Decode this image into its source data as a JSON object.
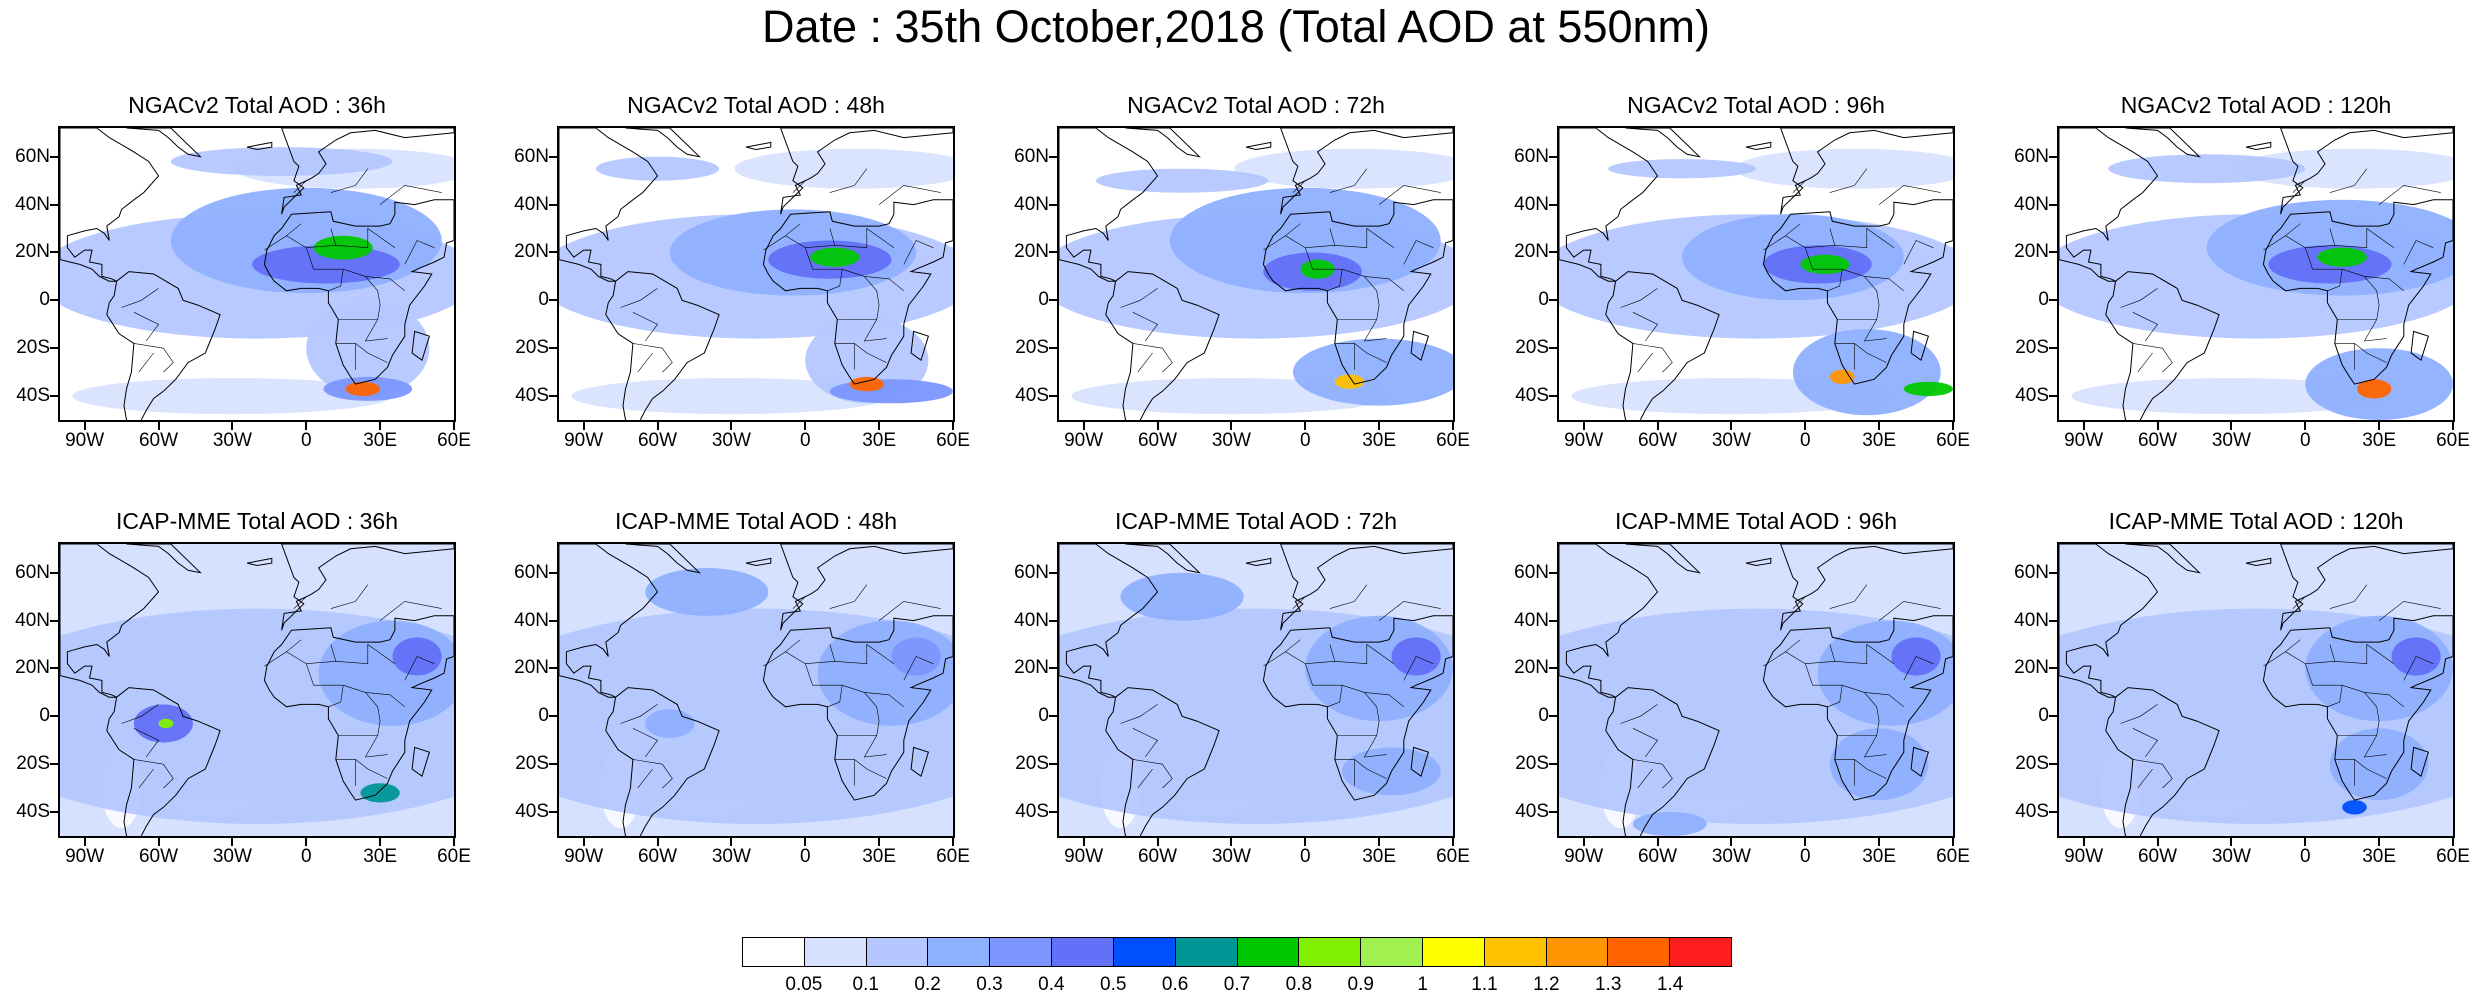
{
  "title": "Date : 35th October,2018 (Total AOD at 550nm)",
  "lat_labels": [
    "60N",
    "40N",
    "20N",
    "0",
    "20S",
    "40S"
  ],
  "lon_labels": [
    "90W",
    "60W",
    "30W",
    "0",
    "30E",
    "60E"
  ],
  "panels": [
    {
      "title": "NGACv2 Total AOD : 36h",
      "model": "NGACv2",
      "lead": "36h"
    },
    {
      "title": "NGACv2 Total AOD : 48h",
      "model": "NGACv2",
      "lead": "48h"
    },
    {
      "title": "NGACv2 Total AOD : 72h",
      "model": "NGACv2",
      "lead": "72h"
    },
    {
      "title": "NGACv2 Total AOD : 96h",
      "model": "NGACv2",
      "lead": "96h"
    },
    {
      "title": "NGACv2 Total AOD : 120h",
      "model": "NGACv2",
      "lead": "120h"
    },
    {
      "title": "ICAP-MME Total AOD : 36h",
      "model": "ICAP-MME",
      "lead": "36h"
    },
    {
      "title": "ICAP-MME Total AOD : 48h",
      "model": "ICAP-MME",
      "lead": "48h"
    },
    {
      "title": "ICAP-MME Total AOD : 72h",
      "model": "ICAP-MME",
      "lead": "72h"
    },
    {
      "title": "ICAP-MME Total AOD : 96h",
      "model": "ICAP-MME",
      "lead": "96h"
    },
    {
      "title": "ICAP-MME Total AOD : 120h",
      "model": "ICAP-MME",
      "lead": "120h"
    }
  ],
  "colorbar": {
    "labels": [
      "0.05",
      "0.1",
      "0.2",
      "0.3",
      "0.4",
      "0.5",
      "0.6",
      "0.7",
      "0.8",
      "0.9",
      "1",
      "1.1",
      "1.2",
      "1.3",
      "1.4"
    ],
    "colors": [
      "#ffffff",
      "#d6e1ff",
      "#b4c7ff",
      "#8fb0ff",
      "#7c96ff",
      "#6370f8",
      "#0050ff",
      "#009696",
      "#00c800",
      "#80f000",
      "#a0f050",
      "#ffff00",
      "#ffc000",
      "#ff9600",
      "#ff6400",
      "#ff1e1e"
    ]
  }
}
